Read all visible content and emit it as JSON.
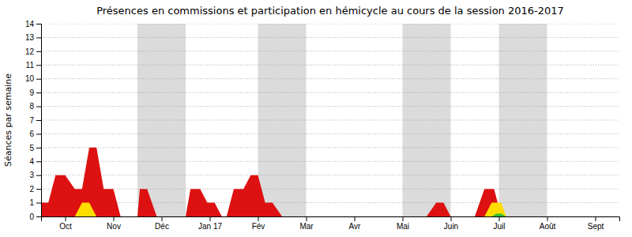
{
  "chart_data": {
    "type": "area",
    "title": "Présences en commissions et participation en hémicycle au cours de la session 2016-2017",
    "y_label": "Séances par semaine",
    "xlim": [
      0,
      12
    ],
    "xticks": [
      {
        "value": 0.5,
        "label": "Oct"
      },
      {
        "value": 1.5,
        "label": "Nov"
      },
      {
        "value": 2.5,
        "label": "Déc"
      },
      {
        "value": 3.5,
        "label": "Jan 17"
      },
      {
        "value": 4.5,
        "label": "Fév"
      },
      {
        "value": 5.5,
        "label": "Mar"
      },
      {
        "value": 6.5,
        "label": "Avr"
      },
      {
        "value": 7.5,
        "label": "Mai"
      },
      {
        "value": 8.5,
        "label": "Juin"
      },
      {
        "value": 9.5,
        "label": "Juil"
      },
      {
        "value": 10.5,
        "label": "Août"
      },
      {
        "value": 11.5,
        "label": "Sept"
      }
    ],
    "ylim": [
      0,
      14
    ],
    "yticks": [
      0,
      1,
      2,
      3,
      4,
      5,
      6,
      7,
      8,
      9,
      10,
      11,
      12,
      13,
      14
    ],
    "grid": true,
    "bands": [
      [
        2.0,
        3.0
      ],
      [
        4.5,
        5.5
      ],
      [
        7.5,
        8.5
      ],
      [
        9.5,
        10.5
      ]
    ],
    "series": [
      {
        "color": "#dd1111",
        "x": [
          0.0,
          0.15,
          0.3,
          0.5,
          0.7,
          0.85,
          1.0,
          1.15,
          1.3,
          1.5,
          1.65,
          1.8,
          2.0,
          2.05,
          2.2,
          2.4,
          2.55,
          2.7,
          3.0,
          3.1,
          3.3,
          3.45,
          3.6,
          3.75,
          3.85,
          4.0,
          4.2,
          4.35,
          4.5,
          4.65,
          4.8,
          5.0,
          5.2,
          5.5,
          6.5,
          7.5,
          8.0,
          8.2,
          8.35,
          8.5,
          9.0,
          9.2,
          9.4,
          9.55,
          9.7,
          10.5,
          11.5
        ],
        "values": [
          1.0,
          1.0,
          3.0,
          3.0,
          2.0,
          2.0,
          5.0,
          5.0,
          2.0,
          2.0,
          0.0,
          0.0,
          0.0,
          2.0,
          2.0,
          0.0,
          0.0,
          0.0,
          0.0,
          2.0,
          2.0,
          1.0,
          1.0,
          0.0,
          0.0,
          2.0,
          2.0,
          3.0,
          3.0,
          1.0,
          1.0,
          0.0,
          0.0,
          0.0,
          0.0,
          0.0,
          0.0,
          1.0,
          1.0,
          0.0,
          0.0,
          2.0,
          2.0,
          0.0,
          0.0,
          0.0,
          0.0
        ]
      },
      {
        "color": "#ffdd00",
        "x": [
          0.7,
          0.85,
          1.0,
          1.15,
          9.2,
          9.35,
          9.55,
          9.65
        ],
        "values": [
          0.0,
          1.0,
          1.0,
          0.0,
          0.0,
          1.0,
          1.0,
          0.0
        ]
      },
      {
        "color": "#33bb33",
        "x": [
          9.35,
          9.45,
          9.55,
          9.65
        ],
        "values": [
          0.0,
          0.2,
          0.2,
          0.0
        ]
      }
    ]
  }
}
